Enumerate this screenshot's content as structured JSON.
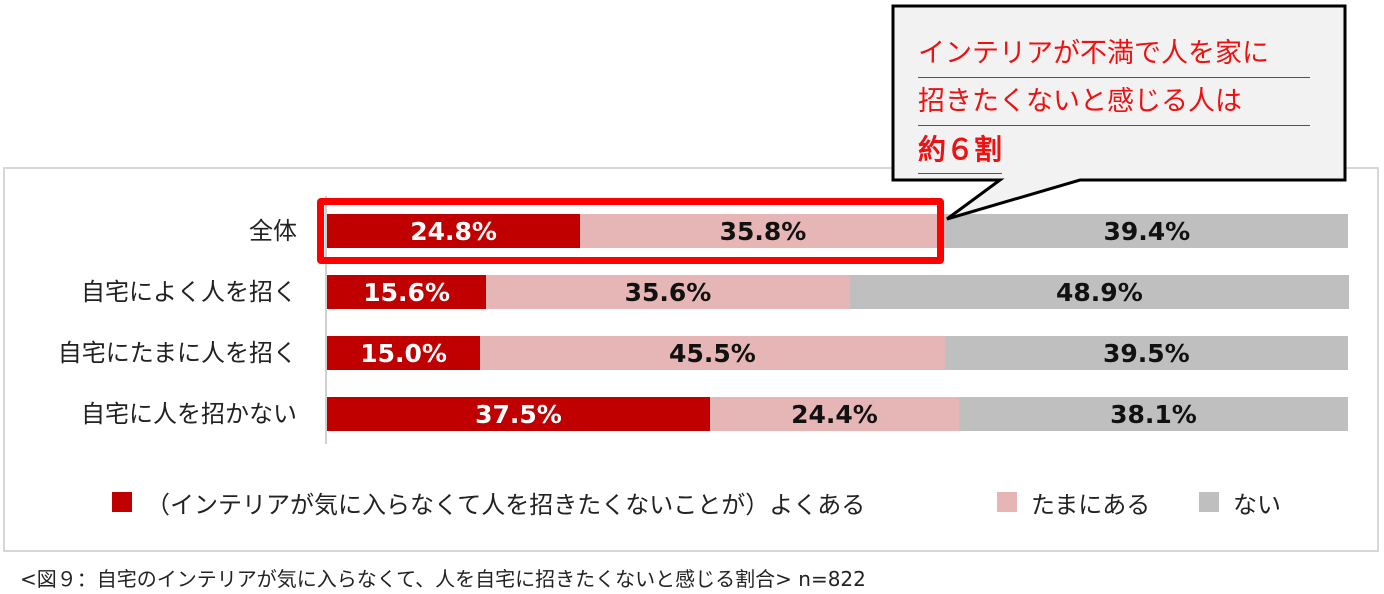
{
  "chart_data": {
    "type": "bar",
    "stacked": true,
    "orientation": "horizontal",
    "unit": "%",
    "categories": [
      "全体",
      "自宅によく人を招く",
      "自宅にたまに人を招く",
      "自宅に人を招かない"
    ],
    "series": [
      {
        "name": "（インテリアが気に入らなくて人を招きたくないことが）よくある",
        "color": "#c00000",
        "values": [
          24.8,
          15.6,
          15.0,
          37.5
        ]
      },
      {
        "name": "たまにある",
        "color": "#e6b6b6",
        "values": [
          35.8,
          35.6,
          45.5,
          24.4
        ]
      },
      {
        "name": "ない",
        "color": "#bfbfbf",
        "values": [
          39.4,
          48.9,
          39.5,
          38.1
        ]
      }
    ],
    "legend_position": "bottom",
    "highlight": {
      "category": "全体",
      "series": [
        "（インテリアが気に入らなくて人を招きたくないことが）よくある",
        "たまにある"
      ]
    }
  },
  "callout": {
    "lines": [
      "インテリアが不満で人を家に",
      "招きたくないと感じる人は"
    ],
    "emphasis": "約６割"
  },
  "caption": "<図９：自宅のインテリアが気に入らなくて、人を自宅に招きたくないと感じる割合> n=822"
}
